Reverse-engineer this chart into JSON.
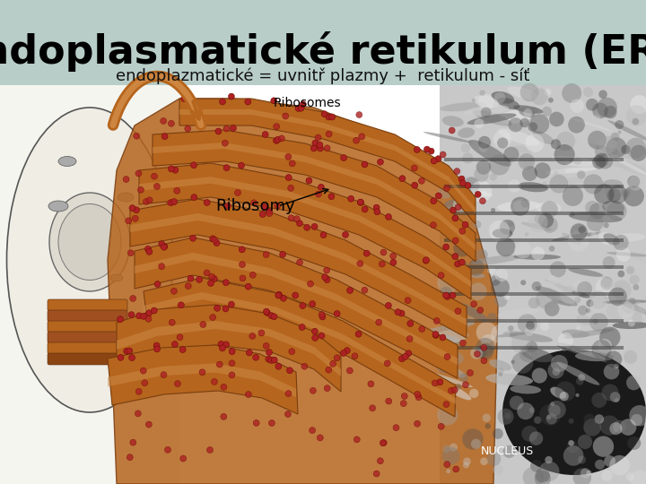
{
  "title": "Endoplasmatické retikulum (ER)-",
  "subtitle": "endoplazmatické = uvnitř plazmy +  retikulum - síť",
  "label_ribosomy": "Ribosomy",
  "label_ribosomes": "Ribosomes",
  "label_nucleus": "NUCLEUS",
  "title_fontsize": 32,
  "subtitle_fontsize": 13,
  "label_fontsize": 13,
  "small_label_fontsize": 10,
  "nucleus_fontsize": 9,
  "bg_color": "#9db0aa",
  "header_bg": "#b8cdc7",
  "content_bg": "#dce8e5",
  "white_area": "#f0eeec",
  "er_color": "#b5651d",
  "er_dark": "#7a3e10",
  "er_light": "#cd8b4a",
  "er_inner": "#c8956a",
  "ribosome_color": "#aa2222",
  "micro_bg": "#888888",
  "title_color": "#000000",
  "subtitle_color": "#111111",
  "cell_bg": "#e8e4dc",
  "cell_outline": "#333333"
}
